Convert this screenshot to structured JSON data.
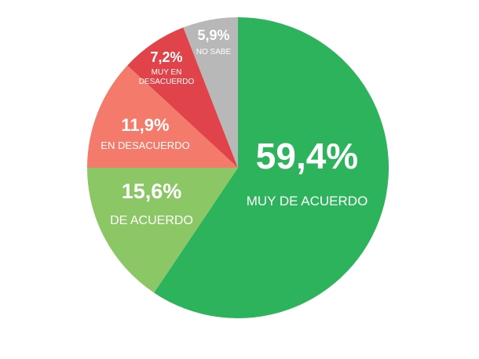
{
  "chart_data": {
    "type": "pie",
    "title": "",
    "slices": [
      {
        "label": "MUY DE ACUERDO",
        "label_lines": [
          "MUY DE ACUERDO"
        ],
        "value": 59.4,
        "display": "59,4%",
        "color": "#2db35b"
      },
      {
        "label": "DE ACUERDO",
        "label_lines": [
          "DE ACUERDO"
        ],
        "value": 15.6,
        "display": "15,6%",
        "color": "#8cc765"
      },
      {
        "label": "EN DESACUERDO",
        "label_lines": [
          "EN DESACUERDO"
        ],
        "value": 11.9,
        "display": "11,9%",
        "color": "#f47b6b"
      },
      {
        "label": "MUY EN DESACUERDO",
        "label_lines": [
          "MUY EN",
          "DESACUERDO"
        ],
        "value": 7.2,
        "display": "7,2%",
        "color": "#e04349"
      },
      {
        "label": "NO SABE",
        "label_lines": [
          "NO SABE"
        ],
        "value": 5.9,
        "display": "5,9%",
        "color": "#b8b8b8"
      }
    ]
  }
}
